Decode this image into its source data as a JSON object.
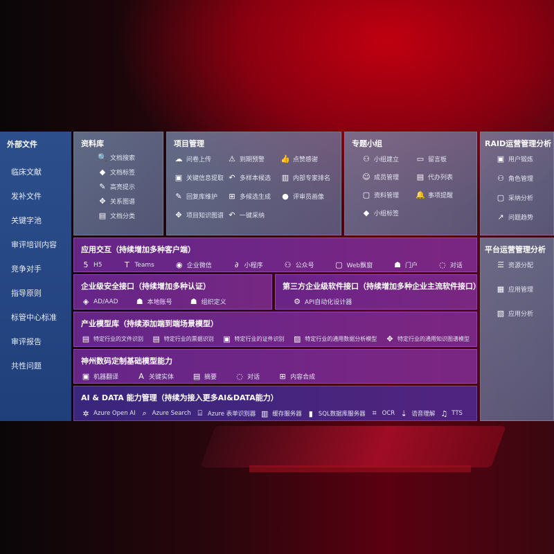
{
  "external": {
    "title": "外部文件",
    "items": [
      "临床文献",
      "发补文件",
      "关键字池",
      "审评培训内容",
      "竞争对手",
      "指导原则",
      "标管中心标准",
      "审评报告",
      "共性问题"
    ]
  },
  "library": {
    "title": "资料库",
    "items": [
      {
        "icon": "doc-search-icon",
        "label": "文档搜索"
      },
      {
        "icon": "tag-icon",
        "label": "文档标签"
      },
      {
        "icon": "pen-icon",
        "label": "高亮提示"
      },
      {
        "icon": "graph-icon",
        "label": "关系图谱"
      },
      {
        "icon": "doc-category-icon",
        "label": "文档分类"
      }
    ]
  },
  "project": {
    "title": "项目管理",
    "items": [
      {
        "icon": "cloud-upload-icon",
        "label": "问卷上传"
      },
      {
        "icon": "alarm-icon",
        "label": "到期预警"
      },
      {
        "icon": "thumbs-up-icon",
        "label": "点赞感谢"
      },
      {
        "icon": "extract-icon",
        "label": "关键信息提取"
      },
      {
        "icon": "reply-icon",
        "label": "多样本候选"
      },
      {
        "icon": "ranking-icon",
        "label": "内部专家排名"
      },
      {
        "icon": "edit-icon",
        "label": "回复库维护"
      },
      {
        "icon": "puzzle-icon",
        "label": "多候选生成"
      },
      {
        "icon": "user-icon",
        "label": "评审员画像"
      },
      {
        "icon": "knowledge-graph-icon",
        "label": "项目知识图谱"
      },
      {
        "icon": "reply-icon",
        "label": "一键采纳"
      }
    ]
  },
  "group": {
    "title": "专题小组",
    "items": [
      {
        "icon": "group-icon",
        "label": "小组建立"
      },
      {
        "icon": "bbs-icon",
        "label": "留言板"
      },
      {
        "icon": "add-user-icon",
        "label": "成员管理"
      },
      {
        "icon": "clipboard-icon",
        "label": "代办列表"
      },
      {
        "icon": "folder-icon",
        "label": "资料管理"
      },
      {
        "icon": "bell-icon",
        "label": "事项提醒"
      },
      {
        "icon": "tag-icon",
        "label": "小组标签"
      }
    ]
  },
  "raid": {
    "title": "RAID运营管理分析",
    "items": [
      {
        "icon": "id-card-icon",
        "label": "用户锻炼"
      },
      {
        "icon": "users-icon",
        "label": "角色管理"
      },
      {
        "icon": "qa-icon",
        "label": "采纳分析"
      },
      {
        "icon": "trend-icon",
        "label": "问题趋势"
      }
    ]
  },
  "platform": {
    "title": "平台运营管理分析",
    "items": [
      {
        "icon": "list-icon",
        "label": "资源分配"
      },
      {
        "icon": "apps-icon",
        "label": "应用管理"
      },
      {
        "icon": "analysis-icon",
        "label": "应用分析"
      }
    ]
  },
  "app": {
    "title": "应用交互（持续增加多种客户端）",
    "items": [
      {
        "icon": "html5-icon",
        "label": "H5"
      },
      {
        "icon": "teams-icon",
        "label": "Teams"
      },
      {
        "icon": "wechat-icon",
        "label": "企业微信"
      },
      {
        "icon": "miniprogram-icon",
        "label": "小程序"
      },
      {
        "icon": "official-account-icon",
        "label": "公众号"
      },
      {
        "icon": "window-icon",
        "label": "Web飘窗"
      },
      {
        "icon": "portal-icon",
        "label": "门户"
      },
      {
        "icon": "chat-icon",
        "label": "对话"
      }
    ]
  },
  "security": {
    "title": "企业级安全接口（持续增加多种认证）",
    "items": [
      {
        "icon": "azure-ad-icon",
        "label": "AD/AAD"
      },
      {
        "icon": "local-account-icon",
        "label": "本地账号"
      },
      {
        "icon": "org-icon",
        "label": "组织定义"
      }
    ]
  },
  "third": {
    "title": "第三方企业级软件接口（持续增加多种企业主流软件接口）",
    "items": [
      {
        "icon": "gear-icon",
        "label": "API自动化设计器"
      }
    ]
  },
  "industry": {
    "title": "产业模型库（持续添加端到端场景模型）",
    "items": [
      {
        "icon": "file-icon",
        "label": "特定行业的文件识别"
      },
      {
        "icon": "receipt-icon",
        "label": "特定行业的票据识别"
      },
      {
        "icon": "id-card-icon",
        "label": "特定行业的证件识别"
      },
      {
        "icon": "chart-icon",
        "label": "特定行业的通用数据分析模型"
      },
      {
        "icon": "knowledge-graph-icon",
        "label": "特定行业的通用知识图谱模型"
      }
    ]
  },
  "base": {
    "title": "神州数码定制基础模型能力",
    "items": [
      {
        "icon": "translate-icon",
        "label": "机器翻译"
      },
      {
        "icon": "entity-icon",
        "label": "关键实体"
      },
      {
        "icon": "summary-icon",
        "label": "摘要"
      },
      {
        "icon": "chat-icon",
        "label": "对话"
      },
      {
        "icon": "compose-icon",
        "label": "内容合成"
      }
    ]
  },
  "ai": {
    "title": "AI & DATA 能力管理（持续为接入更多AI&DATA能力）",
    "items": [
      {
        "icon": "openai-icon",
        "label": "Azure Open AI"
      },
      {
        "icon": "search-icon",
        "label": "Azure Search"
      },
      {
        "icon": "form-recognizer-icon",
        "label": "Azure 表单识别器"
      },
      {
        "icon": "cache-icon",
        "label": "缓存服务器"
      },
      {
        "icon": "sql-icon",
        "label": "SQL数据库服务器"
      },
      {
        "icon": "ocr-icon",
        "label": "OCR"
      },
      {
        "icon": "speech-icon",
        "label": "语音理解"
      },
      {
        "icon": "tts-icon",
        "label": "TTS"
      }
    ]
  }
}
